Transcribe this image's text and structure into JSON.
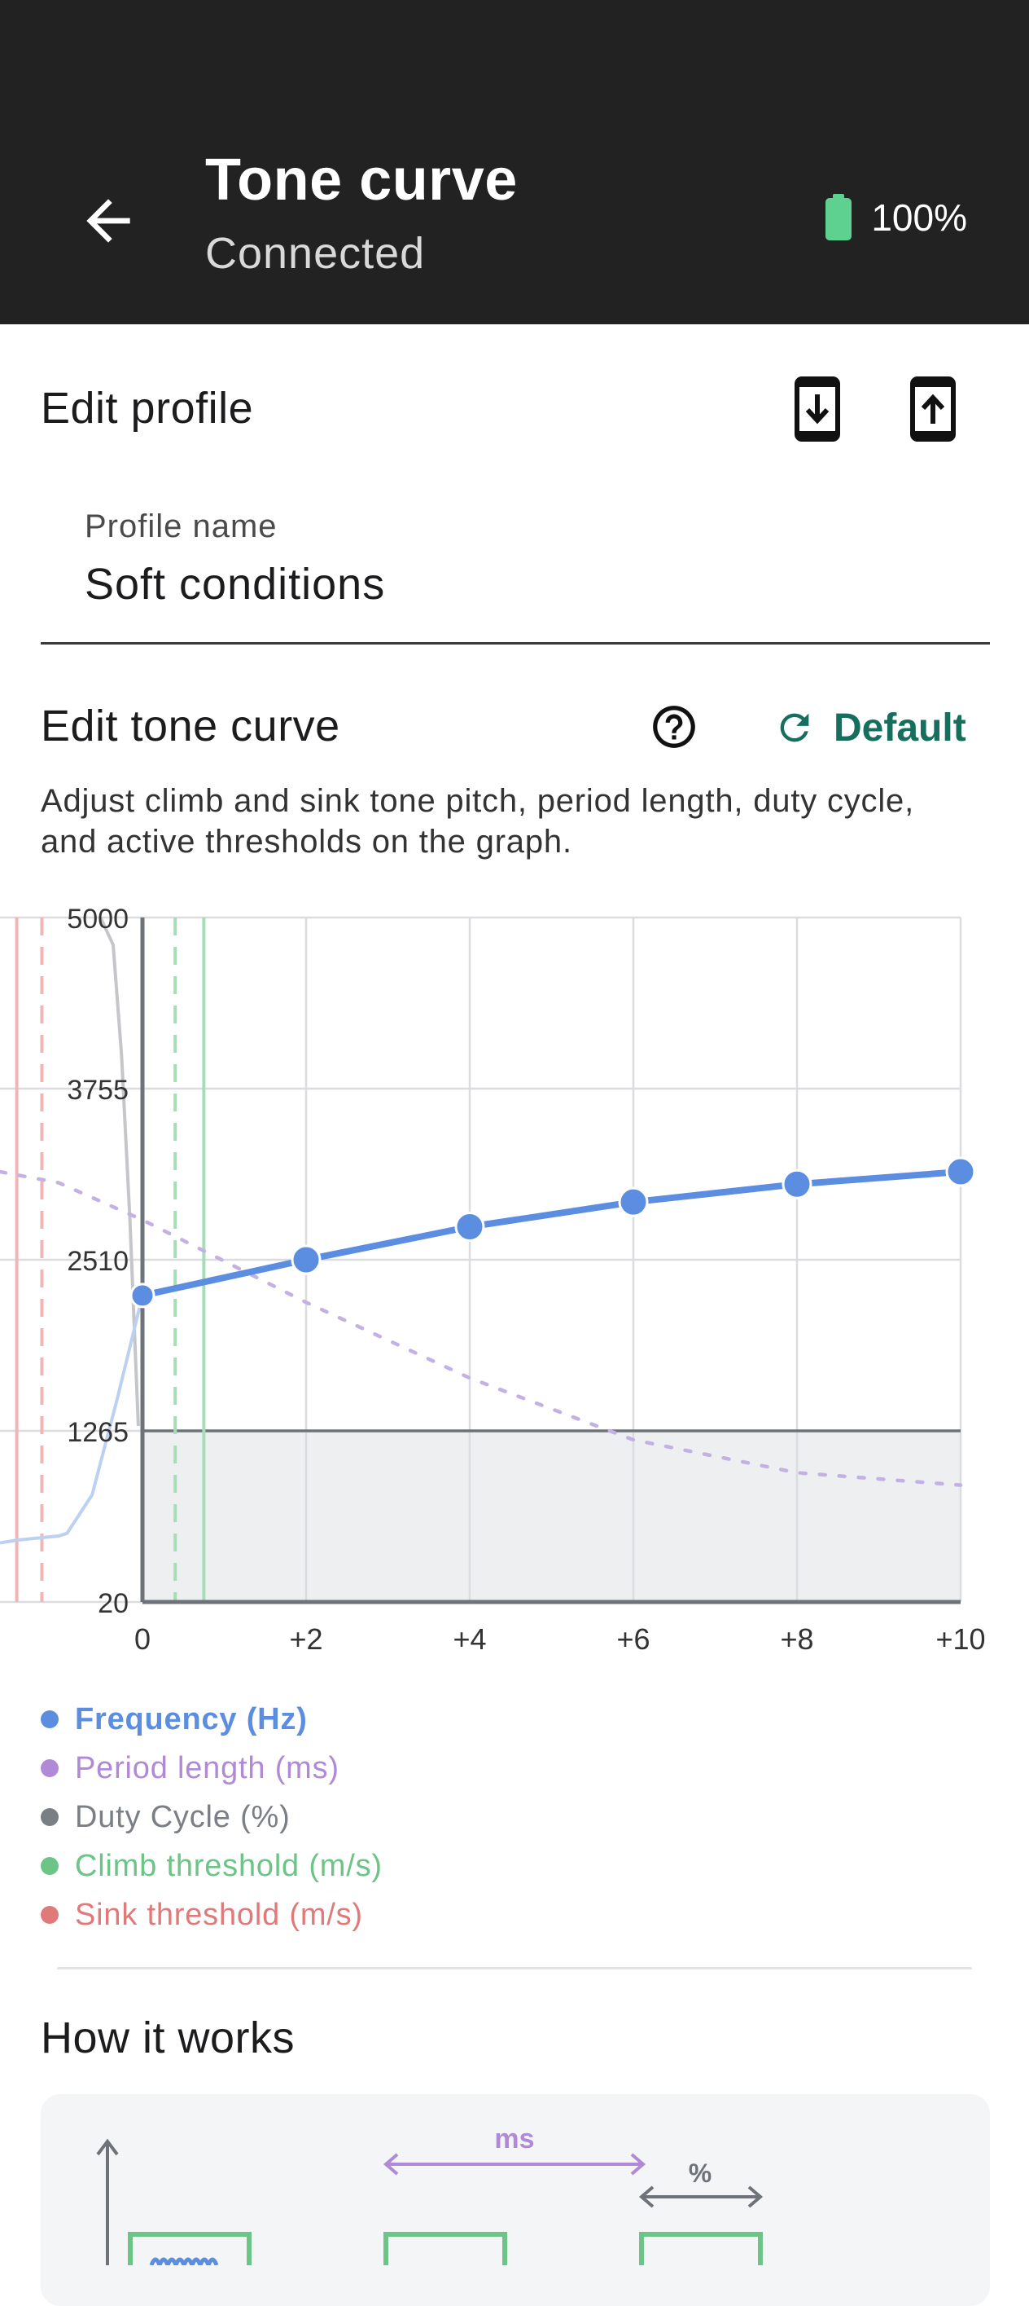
{
  "appbar": {
    "title": "Tone curve",
    "subtitle": "Connected",
    "battery_text": "100%",
    "battery_color": "#5ed08f",
    "icons": {
      "back": "arrow-left-icon",
      "battery": "battery-full-icon"
    }
  },
  "edit_profile": {
    "heading": "Edit profile",
    "icons": {
      "import": "download-icon",
      "export": "upload-icon"
    },
    "profile_name_label": "Profile name",
    "profile_name_value": "Soft conditions"
  },
  "tone_curve": {
    "heading": "Edit tone curve",
    "default_label": "Default",
    "description": "Adjust climb and sink tone pitch, period length, duty cycle, and active thresholds on the graph.",
    "icons": {
      "help": "help-circle-icon",
      "reset": "refresh-icon"
    },
    "accent_color": "#166e5c"
  },
  "chart_data": {
    "type": "line",
    "x_ticks": [
      "0",
      "+2",
      "+4",
      "+6",
      "+8",
      "+10"
    ],
    "y_ticks": [
      "20",
      "1265",
      "2510",
      "3755",
      "5000"
    ],
    "xlim": [
      -1.7,
      10
    ],
    "ylim": [
      20,
      5000
    ],
    "grid": true,
    "legend_position": "bottom",
    "sink_shade_below": 1265,
    "series": [
      {
        "name": "Frequency (Hz)",
        "color": "#5b8de0",
        "style": "solid-with-points",
        "x": [
          0,
          2,
          4,
          6,
          8,
          10
        ],
        "y": [
          2250,
          2510,
          2750,
          2930,
          3060,
          3150
        ],
        "extension_x": [
          -1.7,
          -1.5,
          -1.0,
          -0.9,
          -0.6,
          -0.3,
          0
        ],
        "extension_y": [
          450,
          470,
          500,
          520,
          800,
          1500,
          2250
        ]
      },
      {
        "name": "Period length (ms)",
        "color": "#b08ad6",
        "style": "dotted",
        "x": [
          -1.7,
          -1.0,
          0,
          2,
          4,
          6,
          8,
          10
        ],
        "y": [
          3150,
          3070,
          2800,
          2200,
          1650,
          1200,
          960,
          870
        ]
      },
      {
        "name": "Duty Cycle (%)",
        "color": "#7a7e85",
        "style": "solid-light",
        "x": [
          -0.5,
          -0.35,
          -0.25,
          -0.15,
          -0.05
        ],
        "y": [
          5000,
          4800,
          4000,
          2800,
          1300
        ]
      },
      {
        "name": "Climb threshold (m/s)",
        "color": "#6cc486",
        "thresholds": [
          {
            "x": 0.4,
            "style": "dashed"
          },
          {
            "x": 0.75,
            "style": "solid"
          }
        ]
      },
      {
        "name": "Sink threshold (m/s)",
        "color": "#e07a7a",
        "thresholds": [
          {
            "x": -1.5,
            "style": "solid"
          },
          {
            "x": -1.2,
            "style": "dashed"
          }
        ]
      }
    ]
  },
  "how_it_works": {
    "heading": "How it works",
    "ms_label": "ms",
    "percent_label": "%"
  }
}
